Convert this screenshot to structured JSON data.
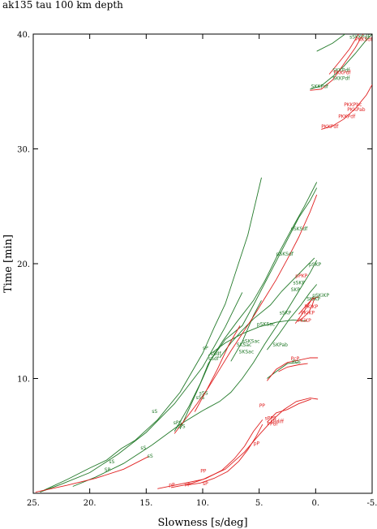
{
  "chart_data": {
    "type": "line",
    "title": "ak135 tau 100 km depth",
    "xlabel": "Slowness [s/deg]",
    "ylabel": "Time [min]",
    "xlim": [
      25,
      -5
    ],
    "ylim": [
      0,
      40
    ],
    "x_reversed": true,
    "x_ticks": [
      25,
      20,
      15,
      10,
      5,
      0,
      -5
    ],
    "x_tick_labels": [
      "25.",
      "20.",
      "15.",
      "10.",
      "5.",
      "0.",
      "-5."
    ],
    "y_ticks": [
      10,
      20,
      30,
      40
    ],
    "y_tick_labels": [
      "10.",
      "20.",
      "30.",
      "40."
    ],
    "grid": false,
    "colors": {
      "primary": "#237a2a",
      "secondary": "#e02020",
      "axis": "#000000"
    },
    "series": [
      {
        "color": "#237a2a",
        "points": [
          [
            24.4,
            0.1
          ],
          [
            22.5,
            0.8
          ],
          [
            20,
            1.8
          ],
          [
            17.5,
            3.4
          ],
          [
            15,
            5.3
          ],
          [
            12.5,
            7.8
          ],
          [
            10,
            11
          ],
          [
            8,
            14.5
          ],
          [
            6.5,
            17.5
          ]
        ]
      },
      {
        "color": "#237a2a",
        "points": [
          [
            24.2,
            0.2
          ],
          [
            22,
            1.2
          ],
          [
            20,
            2.2
          ],
          [
            18.5,
            2.9
          ],
          [
            17.2,
            3.9
          ],
          [
            16,
            4.6
          ],
          [
            14,
            6.4
          ],
          [
            12,
            8.8
          ],
          [
            10,
            12.2
          ],
          [
            9,
            14.4
          ],
          [
            8,
            16.5
          ],
          [
            6,
            22.5
          ],
          [
            4.8,
            27.5
          ]
        ]
      },
      {
        "color": "#237a2a",
        "points": [
          [
            21.5,
            0.6
          ],
          [
            19.5,
            1.4
          ],
          [
            17,
            2.6
          ],
          [
            14.5,
            4.2
          ]
        ]
      },
      {
        "color": "#237a2a",
        "points": [
          [
            14.5,
            4.2
          ],
          [
            12,
            6
          ],
          [
            10,
            7.2
          ],
          [
            8.5,
            8
          ],
          [
            7.5,
            8.8
          ],
          [
            6.5,
            10
          ],
          [
            5.5,
            11.4
          ],
          [
            4.5,
            13
          ],
          [
            3.5,
            14.5
          ],
          [
            2.5,
            16
          ],
          [
            1.5,
            17.6
          ],
          [
            0.5,
            19.2
          ],
          [
            -0.1,
            20.3
          ]
        ]
      },
      {
        "color": "#237a2a",
        "points": [
          [
            12.5,
            5.4
          ],
          [
            11.2,
            7.6
          ],
          [
            10.2,
            9.6
          ],
          [
            9.5,
            11.3
          ],
          [
            8.2,
            13.3
          ],
          [
            7,
            14.9
          ],
          [
            5.5,
            16.8
          ],
          [
            4.5,
            18.5
          ],
          [
            3.5,
            20.5
          ],
          [
            2.3,
            22.7
          ],
          [
            1,
            25
          ],
          [
            -0.1,
            27.1
          ]
        ]
      },
      {
        "color": "#237a2a",
        "points": [
          [
            12,
            5.6
          ],
          [
            11,
            7.8
          ],
          [
            10,
            10
          ],
          [
            9.3,
            11.6
          ],
          [
            8,
            13.4
          ],
          [
            6.5,
            14.6
          ],
          [
            5.5,
            16.4
          ],
          [
            4.5,
            18.3
          ],
          [
            3.5,
            20.2
          ],
          [
            2.5,
            22.1
          ],
          [
            1.5,
            24
          ],
          [
            0.5,
            25.5
          ],
          [
            -0.1,
            26.6
          ]
        ]
      },
      {
        "color": "#237a2a",
        "points": [
          [
            7.5,
            11.5
          ],
          [
            6.5,
            13.2
          ],
          [
            5.5,
            15.5
          ],
          [
            4.8,
            16.8
          ]
        ]
      },
      {
        "color": "#237a2a",
        "points": [
          [
            8.5,
            11.8
          ],
          [
            7.5,
            13.1
          ],
          [
            6.5,
            14.2
          ],
          [
            5.5,
            15.2
          ],
          [
            4,
            16.4
          ],
          [
            3,
            17.6
          ],
          [
            2,
            18.6
          ],
          [
            1,
            19.6
          ],
          [
            0.1,
            20.5
          ]
        ]
      },
      {
        "color": "#237a2a",
        "points": [
          [
            9.5,
            12
          ],
          [
            8,
            13.1
          ],
          [
            6.5,
            13.9
          ],
          [
            5,
            14.5
          ],
          [
            3.5,
            14.9
          ],
          [
            2,
            15.1
          ],
          [
            0.8,
            15
          ]
        ]
      },
      {
        "color": "#237a2a",
        "points": [
          [
            4.3,
            12.5
          ],
          [
            3.3,
            13.8
          ],
          [
            2.3,
            15.2
          ],
          [
            1.3,
            16.4
          ],
          [
            0.5,
            17.5
          ],
          [
            -0.1,
            18.2
          ]
        ]
      },
      {
        "color": "#237a2a",
        "points": [
          [
            4.3,
            10
          ],
          [
            3.5,
            10.6
          ],
          [
            2.5,
            11.3
          ],
          [
            1.5,
            11.4
          ]
        ]
      },
      {
        "color": "#237a2a",
        "points": [
          [
            -0.1,
            38.5
          ],
          [
            -1.5,
            39.2
          ],
          [
            -2.6,
            40
          ]
        ]
      },
      {
        "color": "#237a2a",
        "points": [
          [
            0.5,
            35.2
          ],
          [
            -0.5,
            35.5
          ],
          [
            -1.5,
            36.3
          ],
          [
            -2.5,
            37.2
          ],
          [
            -3.5,
            38.3
          ],
          [
            -4.5,
            39.5
          ],
          [
            -5,
            40
          ]
        ]
      },
      {
        "color": "#e02020",
        "points": [
          [
            24.8,
            0.1
          ],
          [
            22,
            0.7
          ],
          [
            19.5,
            1.3
          ],
          [
            17,
            2.1
          ],
          [
            14.8,
            3.2
          ]
        ]
      },
      {
        "color": "#e02020",
        "points": [
          [
            12.5,
            5.2
          ],
          [
            10.5,
            7.8
          ],
          [
            9.5,
            9.2
          ],
          [
            8.5,
            10.8
          ],
          [
            7.5,
            12.4
          ],
          [
            6.5,
            13.9
          ],
          [
            5.5,
            15.4
          ],
          [
            4.5,
            17
          ],
          [
            3.5,
            18.6
          ],
          [
            2.5,
            20.4
          ],
          [
            1.5,
            22.3
          ],
          [
            0.5,
            24.5
          ],
          [
            -0.1,
            26
          ]
        ]
      },
      {
        "color": "#e02020",
        "points": [
          [
            10.7,
            7.1
          ],
          [
            9.7,
            8.9
          ],
          [
            8.7,
            10.8
          ],
          [
            7.7,
            12.9
          ],
          [
            6.7,
            14.6
          ]
        ]
      },
      {
        "color": "#e02020",
        "points": [
          [
            14,
            0.4
          ],
          [
            12,
            0.8
          ],
          [
            10,
            1.2
          ],
          [
            8,
            2.1
          ],
          [
            6.3,
            3.6
          ],
          [
            5,
            5.1
          ],
          [
            3.8,
            6.4
          ],
          [
            2.8,
            7.3
          ],
          [
            1.7,
            8
          ],
          [
            0.5,
            8.3
          ],
          [
            -0.2,
            8.2
          ]
        ]
      },
      {
        "color": "#e02020",
        "points": [
          [
            12.8,
            0.5
          ],
          [
            11.2,
            0.8
          ],
          [
            9.7,
            1.3
          ],
          [
            8.3,
            2
          ],
          [
            7.2,
            3
          ],
          [
            6.3,
            4.1
          ],
          [
            5.5,
            5.4
          ],
          [
            4.7,
            6.4
          ]
        ]
      },
      {
        "color": "#e02020",
        "points": [
          [
            11.5,
            0.7
          ],
          [
            10.2,
            0.9
          ],
          [
            9,
            1.3
          ],
          [
            7.8,
            1.9
          ],
          [
            6.8,
            2.8
          ],
          [
            6,
            3.8
          ],
          [
            5.3,
            4.9
          ],
          [
            4.7,
            6
          ]
        ]
      },
      {
        "color": "#e02020",
        "points": [
          [
            4.3,
            6.2
          ],
          [
            3.5,
            7
          ],
          [
            2.5,
            7.3
          ],
          [
            1.5,
            7.8
          ],
          [
            0.4,
            8.2
          ]
        ]
      },
      {
        "color": "#e02020",
        "points": [
          [
            4.3,
            9.8
          ],
          [
            3.5,
            10.8
          ],
          [
            2.5,
            11.4
          ],
          [
            1.5,
            11.6
          ],
          [
            0.5,
            11.8
          ],
          [
            -0.2,
            11.8
          ]
        ]
      },
      {
        "color": "#e02020",
        "points": [
          [
            3.3,
            10.6
          ],
          [
            2.5,
            11
          ],
          [
            1.5,
            11.2
          ],
          [
            0.7,
            11.3
          ]
        ]
      },
      {
        "color": "#e02020",
        "points": [
          [
            1.5,
            15
          ],
          [
            1,
            15.4
          ],
          [
            0.6,
            15.8
          ],
          [
            0.3,
            16.4
          ],
          [
            0.1,
            17
          ]
        ]
      },
      {
        "color": "#e02020",
        "points": [
          [
            1.8,
            14.8
          ],
          [
            1.2,
            15.6
          ],
          [
            0.6,
            16.5
          ],
          [
            0.2,
            17.1
          ]
        ]
      },
      {
        "color": "#e02020",
        "points": [
          [
            1.5,
            15.6
          ],
          [
            0.8,
            16.4
          ],
          [
            0.2,
            17
          ],
          [
            -0.3,
            17.1
          ]
        ]
      },
      {
        "color": "#e02020",
        "points": [
          [
            -0.5,
            31.7
          ],
          [
            -1.5,
            32
          ],
          [
            -2.5,
            32.6
          ],
          [
            -3.5,
            33.5
          ],
          [
            -4.5,
            34.7
          ],
          [
            -5,
            35.6
          ]
        ]
      },
      {
        "color": "#e02020",
        "points": [
          [
            0.5,
            35.1
          ],
          [
            -0.5,
            35.2
          ],
          [
            -1.5,
            36
          ],
          [
            -2.5,
            37.4
          ],
          [
            -3.5,
            38.8
          ],
          [
            -4.2,
            40
          ]
        ]
      },
      {
        "color": "#e02020",
        "points": [
          [
            -1.2,
            36.5
          ],
          [
            -2.2,
            37.7
          ],
          [
            -3,
            38.7
          ],
          [
            -3.8,
            40
          ]
        ]
      }
    ],
    "annotations": [
      {
        "text": "sS",
        "x": 14.5,
        "y": 7.0,
        "color": "#237a2a"
      },
      {
        "text": "sS",
        "x": 18.3,
        "y": 2.6,
        "color": "#237a2a"
      },
      {
        "text": "SP",
        "x": 18.7,
        "y": 1.9,
        "color": "#237a2a"
      },
      {
        "text": "sS",
        "x": 15.5,
        "y": 3.8,
        "color": "#237a2a"
      },
      {
        "text": "sS",
        "x": 14.9,
        "y": 3.1,
        "color": "#237a2a"
      },
      {
        "text": "sPS",
        "x": 12.6,
        "y": 6.0,
        "color": "#237a2a"
      },
      {
        "text": "sPS",
        "x": 12.3,
        "y": 5.7,
        "color": "#237a2a"
      },
      {
        "text": "sSS",
        "x": 10.6,
        "y": 8.2,
        "color": "#237a2a"
      },
      {
        "text": "sSS",
        "x": 10.3,
        "y": 8.6,
        "color": "#237a2a"
      },
      {
        "text": "sP",
        "x": 10.0,
        "y": 12.5,
        "color": "#237a2a"
      },
      {
        "text": "sSdf",
        "x": 9.5,
        "y": 11.6,
        "color": "#237a2a"
      },
      {
        "text": "sSdf",
        "x": 9.3,
        "y": 12.0,
        "color": "#237a2a"
      },
      {
        "text": "SKSac",
        "x": 7.0,
        "y": 12.8,
        "color": "#237a2a"
      },
      {
        "text": "SKSac",
        "x": 6.8,
        "y": 12.2,
        "color": "#237a2a"
      },
      {
        "text": "sSKSac",
        "x": 6.5,
        "y": 13.1,
        "color": "#237a2a"
      },
      {
        "text": "pSKSac",
        "x": 5.2,
        "y": 14.6,
        "color": "#237a2a"
      },
      {
        "text": "SKPab",
        "x": 3.8,
        "y": 12.8,
        "color": "#237a2a"
      },
      {
        "text": "sSKP",
        "x": 3.2,
        "y": 15.6,
        "color": "#237a2a"
      },
      {
        "text": "pSKSdf",
        "x": 3.5,
        "y": 20.7,
        "color": "#237a2a"
      },
      {
        "text": "sSKSdf",
        "x": 2.2,
        "y": 22.9,
        "color": "#237a2a"
      },
      {
        "text": "pSKP",
        "x": 0.6,
        "y": 19.8,
        "color": "#237a2a"
      },
      {
        "text": "sSKP",
        "x": 2.0,
        "y": 18.2,
        "color": "#237a2a"
      },
      {
        "text": "SKP",
        "x": 2.2,
        "y": 17.6,
        "color": "#237a2a"
      },
      {
        "text": "SKiKP",
        "x": 0.8,
        "y": 16.8,
        "color": "#237a2a"
      },
      {
        "text": "pSKiKP",
        "x": 0.3,
        "y": 17.1,
        "color": "#237a2a"
      },
      {
        "text": "SKKPdf",
        "x": -1.5,
        "y": 36.0,
        "color": "#237a2a"
      },
      {
        "text": "SKKPdf",
        "x": -1.5,
        "y": 36.7,
        "color": "#237a2a"
      },
      {
        "text": "SKKPdf",
        "x": 0.4,
        "y": 35.3,
        "color": "#237a2a"
      },
      {
        "text": "sSKKPdf",
        "x": -3.0,
        "y": 39.6,
        "color": "#237a2a"
      },
      {
        "text": "PcS",
        "x": 2.1,
        "y": 11.3,
        "color": "#237a2a"
      },
      {
        "text": "PP",
        "x": 11.6,
        "y": 0.6,
        "color": "#e02020"
      },
      {
        "text": "pP",
        "x": 13.0,
        "y": 0.6,
        "color": "#e02020"
      },
      {
        "text": "sP",
        "x": 10.0,
        "y": 0.7,
        "color": "#e02020"
      },
      {
        "text": "PP",
        "x": 10.2,
        "y": 1.8,
        "color": "#e02020"
      },
      {
        "text": "pP",
        "x": 5.5,
        "y": 4.2,
        "color": "#e02020"
      },
      {
        "text": "PP",
        "x": 5.0,
        "y": 7.5,
        "color": "#e02020"
      },
      {
        "text": "sPPS",
        "x": 4.5,
        "y": 6.4,
        "color": "#e02020"
      },
      {
        "text": "PPdf",
        "x": 4.3,
        "y": 5.9,
        "color": "#e02020"
      },
      {
        "text": "sPdiff",
        "x": 4.0,
        "y": 6.1,
        "color": "#e02020"
      },
      {
        "text": "PcP",
        "x": 2.2,
        "y": 11.6,
        "color": "#e02020"
      },
      {
        "text": "PKiKP",
        "x": 1.3,
        "y": 15.6,
        "color": "#e02020"
      },
      {
        "text": "PKIKP",
        "x": 1.0,
        "y": 16.1,
        "color": "#e02020"
      },
      {
        "text": "PKiKP",
        "x": 1.6,
        "y": 14.9,
        "color": "#e02020"
      },
      {
        "text": "pPKP",
        "x": 1.8,
        "y": 18.8,
        "color": "#e02020"
      },
      {
        "text": "PKKPbc",
        "x": -2.5,
        "y": 33.7,
        "color": "#e02020"
      },
      {
        "text": "PKKPab",
        "x": -2.8,
        "y": 33.3,
        "color": "#e02020"
      },
      {
        "text": "PKKPdf",
        "x": -2.0,
        "y": 32.7,
        "color": "#e02020"
      },
      {
        "text": "PKKPdf",
        "x": -0.5,
        "y": 31.8,
        "color": "#e02020"
      },
      {
        "text": "PKKPdf",
        "x": -1.6,
        "y": 36.5,
        "color": "#e02020"
      },
      {
        "text": "PKKSdf",
        "x": -3.5,
        "y": 39.4,
        "color": "#e02020"
      }
    ]
  }
}
